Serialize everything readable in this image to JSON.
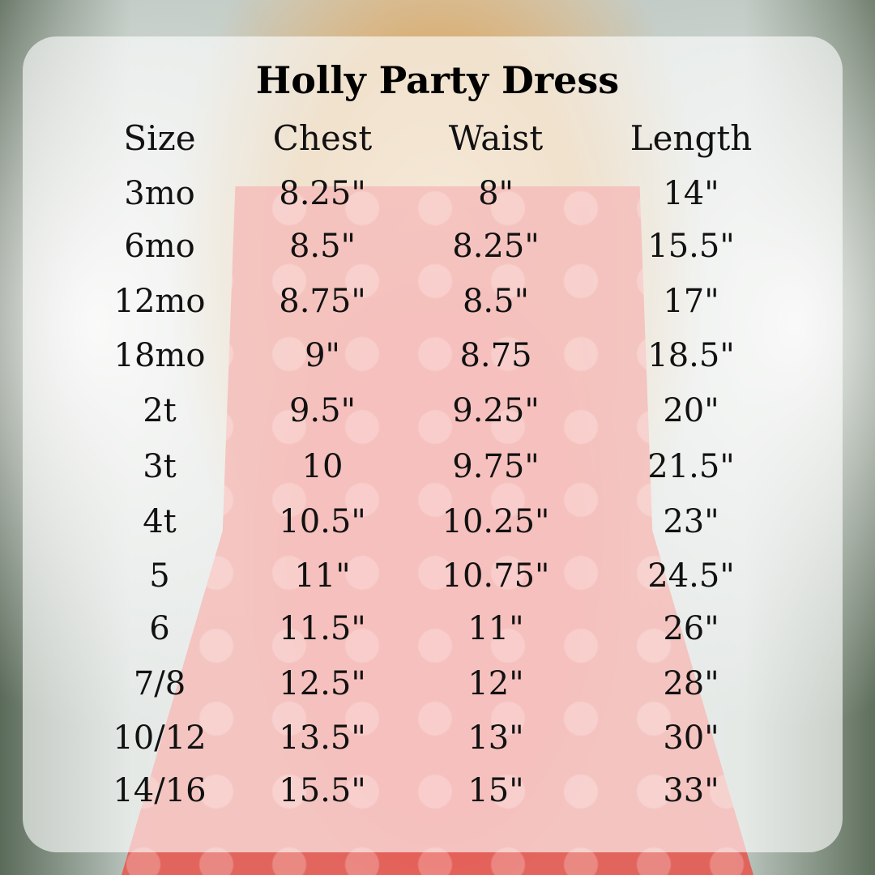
{
  "title": "Holly Party Dress",
  "headers": [
    "Size",
    "Chest",
    "Waist",
    "Length"
  ],
  "rows": [
    [
      "3mo",
      "8.25\"",
      "8\"",
      "14\""
    ],
    [
      "6mo",
      "8.5\"",
      "8.25\"",
      "15.5\""
    ],
    [
      "12mo",
      "8.75\"",
      "8.5\"",
      "17\""
    ],
    [
      "18mo",
      "9\"",
      "8.75",
      "18.5\""
    ],
    [
      "2t",
      "9.5\"",
      "9.25\"",
      "20\""
    ],
    [
      "3t",
      "10",
      "9.75\"",
      "21.5\""
    ],
    [
      "4t",
      "10.5\"",
      "10.25\"",
      "23\""
    ],
    [
      "5",
      "11\"",
      "10.75\"",
      "24.5\""
    ],
    [
      "6",
      "11.5\"",
      "11\"",
      "26\""
    ],
    [
      "7/8",
      "12.5\"",
      "12\"",
      "28\""
    ],
    [
      "10/12",
      "13.5\"",
      "13\"",
      "30\""
    ],
    [
      "14/16",
      "15.5\"",
      "15\"",
      "33\""
    ]
  ]
}
